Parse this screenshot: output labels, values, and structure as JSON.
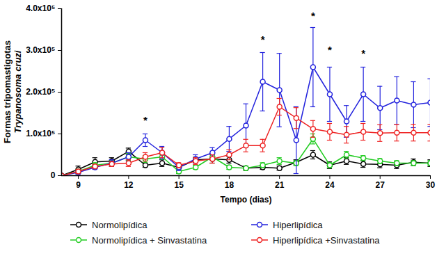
{
  "chart_data": {
    "type": "line",
    "xlabel": "Tempo (dias)",
    "ylabel": "Formas tripomastigotas\nTrypanosoma cruzi",
    "x": [
      8,
      9,
      10,
      11,
      12,
      13,
      14,
      15,
      16,
      17,
      18,
      19,
      20,
      21,
      22,
      23,
      24,
      25,
      26,
      27,
      28,
      29,
      30
    ],
    "xlim": [
      8,
      30
    ],
    "xticks": [
      9,
      12,
      15,
      18,
      21,
      24,
      27,
      30
    ],
    "ylim": [
      0,
      400000
    ],
    "yticks": [
      0,
      {
        "value": 100000,
        "label": "1.0x10⁵"
      },
      {
        "value": 200000,
        "label": "2.0x10⁵"
      },
      {
        "value": 300000,
        "label": "3.0x10⁵"
      },
      {
        "value": 400000,
        "label": "4.0x10⁵"
      }
    ],
    "grid": false,
    "legend": "bottom",
    "marker": "circle",
    "series": [
      {
        "name": "Normolipídica",
        "color": "#000000",
        "values": [
          0,
          15000,
          33000,
          35000,
          58000,
          25000,
          30000,
          20000,
          38000,
          40000,
          38000,
          18000,
          20000,
          18000,
          32000,
          50000,
          25000,
          35000,
          28000,
          27000,
          25000,
          32000,
          30000
        ],
        "errors": [
          0,
          8000,
          10000,
          8000,
          8000,
          5000,
          8000,
          5000,
          6000,
          10000,
          8000,
          5000,
          5000,
          5000,
          6000,
          10000,
          8000,
          8000,
          8000,
          8000,
          8000,
          8000,
          8000
        ]
      },
      {
        "name": "Normolipídica + Sinvastatina",
        "color": "#22cc22",
        "values": [
          0,
          10000,
          25000,
          30000,
          45000,
          40000,
          45000,
          10000,
          20000,
          45000,
          20000,
          18000,
          25000,
          35000,
          30000,
          88000,
          25000,
          50000,
          42000,
          35000,
          30000,
          30000,
          30000
        ],
        "errors": [
          0,
          5000,
          6000,
          6000,
          8000,
          8000,
          6000,
          5000,
          5000,
          8000,
          5000,
          5000,
          6000,
          8000,
          6000,
          12000,
          6000,
          8000,
          6000,
          6000,
          6000,
          6000,
          6000
        ]
      },
      {
        "name": "Hiperlipídica",
        "color": "#2222dd",
        "values": [
          0,
          8000,
          20000,
          30000,
          45000,
          85000,
          55000,
          20000,
          40000,
          55000,
          88000,
          120000,
          225000,
          205000,
          85000,
          260000,
          195000,
          130000,
          195000,
          162000,
          180000,
          170000,
          175000
        ],
        "errors": [
          0,
          5000,
          5000,
          8000,
          10000,
          15000,
          15000,
          8000,
          10000,
          12000,
          30000,
          52000,
          70000,
          88000,
          80000,
          95000,
          65000,
          38000,
          65000,
          52000,
          57000,
          55000,
          57000
        ]
      },
      {
        "name": "Hiperlipídica +Sinvastatina",
        "color": "#ee2222",
        "values": [
          0,
          10000,
          22000,
          28000,
          30000,
          45000,
          55000,
          25000,
          35000,
          40000,
          50000,
          72000,
          72000,
          165000,
          138000,
          112000,
          105000,
          98000,
          105000,
          102000,
          103000,
          103000,
          103000
        ],
        "errors": [
          0,
          5000,
          5000,
          6000,
          8000,
          10000,
          12000,
          6000,
          8000,
          10000,
          12000,
          15000,
          15000,
          20000,
          25000,
          20000,
          20000,
          20000,
          20000,
          20000,
          20000,
          20000,
          20000
        ]
      }
    ],
    "annotations": [
      {
        "x": 13,
        "y": 132000,
        "text": "*"
      },
      {
        "x": 20,
        "y": 325000,
        "text": "*"
      },
      {
        "x": 23,
        "y": 383000,
        "text": "*"
      },
      {
        "x": 24,
        "y": 300000,
        "text": "*"
      },
      {
        "x": 26,
        "y": 292000,
        "text": "*"
      }
    ]
  }
}
